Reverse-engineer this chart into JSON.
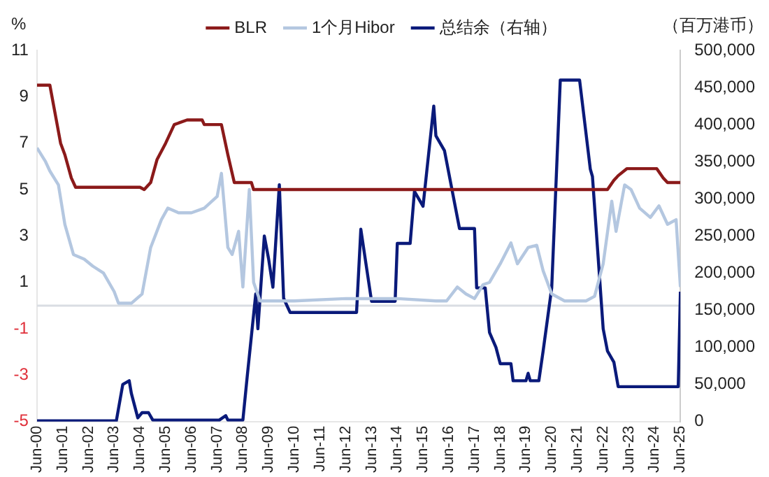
{
  "chart_data": {
    "type": "line",
    "ylabel": "%",
    "y2label": "（百万港币）",
    "legend": "top",
    "grid": false,
    "marker": "none",
    "line_style": "solid",
    "xlim": [
      "2000-06",
      "2025-06"
    ],
    "xticks": [
      {
        "value": "2000-06",
        "label": "Jun-00"
      },
      {
        "value": "2001-06",
        "label": "Jun-01"
      },
      {
        "value": "2002-06",
        "label": "Jun-02"
      },
      {
        "value": "2003-06",
        "label": "Jun-03"
      },
      {
        "value": "2004-06",
        "label": "Jun-04"
      },
      {
        "value": "2005-06",
        "label": "Jun-05"
      },
      {
        "value": "2006-06",
        "label": "Jun-06"
      },
      {
        "value": "2007-06",
        "label": "Jun-07"
      },
      {
        "value": "2008-06",
        "label": "Jun-08"
      },
      {
        "value": "2009-06",
        "label": "Jun-09"
      },
      {
        "value": "2010-06",
        "label": "Jun-10"
      },
      {
        "value": "2011-06",
        "label": "Jun-11"
      },
      {
        "value": "2012-06",
        "label": "Jun-12"
      },
      {
        "value": "2013-06",
        "label": "Jun-13"
      },
      {
        "value": "2014-06",
        "label": "Jun-14"
      },
      {
        "value": "2015-06",
        "label": "Jun-15"
      },
      {
        "value": "2016-06",
        "label": "Jun-16"
      },
      {
        "value": "2017-06",
        "label": "Jun-17"
      },
      {
        "value": "2018-06",
        "label": "Jun-18"
      },
      {
        "value": "2019-06",
        "label": "Jun-19"
      },
      {
        "value": "2020-06",
        "label": "Jun-20"
      },
      {
        "value": "2021-06",
        "label": "Jun-21"
      },
      {
        "value": "2022-06",
        "label": "Jun-22"
      },
      {
        "value": "2023-06",
        "label": "Jun-23"
      },
      {
        "value": "2024-06",
        "label": "Jun-24"
      },
      {
        "value": "2025-06",
        "label": "Jun-25"
      }
    ],
    "ylim": [
      -5,
      11
    ],
    "yticks": [
      -5,
      -3,
      -1,
      1,
      3,
      5,
      7,
      9,
      11
    ],
    "y2lim": [
      0,
      500000
    ],
    "y2ticks": [
      {
        "value": 0,
        "label": "0"
      },
      {
        "value": 50000,
        "label": "50,000"
      },
      {
        "value": 100000,
        "label": "100,000"
      },
      {
        "value": 150000,
        "label": "150,000"
      },
      {
        "value": 200000,
        "label": "200,000"
      },
      {
        "value": 250000,
        "label": "250,000"
      },
      {
        "value": 300000,
        "label": "300,000"
      },
      {
        "value": 350000,
        "label": "350,000"
      },
      {
        "value": 400000,
        "label": "400,000"
      },
      {
        "value": 450000,
        "label": "450,000"
      },
      {
        "value": 500000,
        "label": "500,000"
      }
    ],
    "ref_lines": [
      {
        "axis": "y",
        "value": 0,
        "color": "#d9dde3"
      }
    ],
    "series": [
      {
        "name": "BLR",
        "color": "#8b1a1a",
        "x": [
          "2000-06",
          "2000-12",
          "2001-02",
          "2001-05",
          "2001-07",
          "2001-10",
          "2001-12",
          "2004-06",
          "2004-08",
          "2004-11",
          "2005-02",
          "2005-06",
          "2005-10",
          "2006-04",
          "2006-11",
          "2006-12",
          "2007-08",
          "2007-11",
          "2008-02",
          "2008-10",
          "2008-11",
          "2022-08",
          "2022-11",
          "2023-01",
          "2023-05",
          "2024-07",
          "2024-10",
          "2024-12",
          "2025-06"
        ],
        "values": [
          9.5,
          9.5,
          8.5,
          7.0,
          6.5,
          5.5,
          5.1,
          5.1,
          5.0,
          5.3,
          6.3,
          7.0,
          7.8,
          8.0,
          8.0,
          7.8,
          7.8,
          6.5,
          5.3,
          5.3,
          5.0,
          5.0,
          5.4,
          5.6,
          5.9,
          5.9,
          5.5,
          5.3,
          5.3
        ]
      },
      {
        "name": "1个月Hibor",
        "color": "#b4c7e0",
        "x": [
          "2000-06",
          "2000-10",
          "2000-12",
          "2001-04",
          "2001-07",
          "2001-11",
          "2002-04",
          "2002-08",
          "2003-01",
          "2003-06",
          "2003-08",
          "2004-02",
          "2004-07",
          "2004-11",
          "2005-04",
          "2005-07",
          "2005-12",
          "2006-06",
          "2006-12",
          "2007-06",
          "2007-08",
          "2007-11",
          "2008-01",
          "2008-04",
          "2008-06",
          "2008-09",
          "2008-11",
          "2009-02",
          "2010-06",
          "2012-06",
          "2014-06",
          "2015-12",
          "2016-05",
          "2016-10",
          "2017-02",
          "2017-06",
          "2017-10",
          "2018-01",
          "2018-06",
          "2018-11",
          "2019-02",
          "2019-07",
          "2019-11",
          "2020-02",
          "2020-06",
          "2020-12",
          "2021-10",
          "2022-02",
          "2022-06",
          "2022-10",
          "2022-12",
          "2023-04",
          "2023-07",
          "2023-11",
          "2024-04",
          "2024-08",
          "2024-12",
          "2025-04",
          "2025-06"
        ],
        "values": [
          6.8,
          6.2,
          5.8,
          5.2,
          3.5,
          2.2,
          2.0,
          1.7,
          1.4,
          0.6,
          0.1,
          0.1,
          0.5,
          2.5,
          3.7,
          4.2,
          4.0,
          4.0,
          4.2,
          4.7,
          5.7,
          2.5,
          2.2,
          3.2,
          0.8,
          5.0,
          1.0,
          0.2,
          0.2,
          0.3,
          0.3,
          0.2,
          0.2,
          0.8,
          0.5,
          0.3,
          0.9,
          1.0,
          1.8,
          2.7,
          1.8,
          2.5,
          2.6,
          1.5,
          0.5,
          0.2,
          0.2,
          0.4,
          1.8,
          4.5,
          3.2,
          5.2,
          5.0,
          4.2,
          3.8,
          4.3,
          3.5,
          3.7,
          0.8
        ]
      },
      {
        "name": "总结余（右轴）",
        "color": "#0a1a7a",
        "axis": "y2",
        "x": [
          "2000-06",
          "2003-07",
          "2003-10",
          "2004-01",
          "2004-02",
          "2004-05",
          "2004-07",
          "2004-10",
          "2004-12",
          "2007-07",
          "2007-10",
          "2007-11",
          "2008-06",
          "2008-08",
          "2008-12",
          "2009-01",
          "2009-04",
          "2009-06",
          "2009-08",
          "2009-11",
          "2010-01",
          "2010-04",
          "2012-11",
          "2013-01",
          "2013-06",
          "2014-05",
          "2014-06",
          "2014-12",
          "2015-02",
          "2015-06",
          "2015-11",
          "2015-12",
          "2016-04",
          "2016-07",
          "2016-11",
          "2017-06",
          "2017-07",
          "2017-11",
          "2018-01",
          "2018-04",
          "2018-06",
          "2018-11",
          "2018-12",
          "2019-06",
          "2019-07",
          "2019-08",
          "2019-12",
          "2020-02",
          "2020-06",
          "2020-10",
          "2021-07",
          "2021-12",
          "2022-01",
          "2022-06",
          "2022-08",
          "2022-11",
          "2023-01",
          "2025-05",
          "2025-06"
        ],
        "values": [
          1000,
          1000,
          50000,
          55000,
          38000,
          5000,
          12000,
          12000,
          2000,
          2000,
          8000,
          2000,
          2000,
          60000,
          172000,
          125000,
          250000,
          219000,
          181000,
          319000,
          166000,
          147000,
          147000,
          259000,
          162000,
          162000,
          240000,
          240000,
          310000,
          290000,
          425000,
          385000,
          365000,
          320000,
          260000,
          260000,
          180000,
          180000,
          120000,
          100000,
          78000,
          78000,
          55000,
          55000,
          65000,
          55000,
          55000,
          95000,
          180000,
          460000,
          460000,
          340000,
          330000,
          125000,
          95000,
          80000,
          47000,
          47000,
          175000
        ]
      }
    ]
  }
}
